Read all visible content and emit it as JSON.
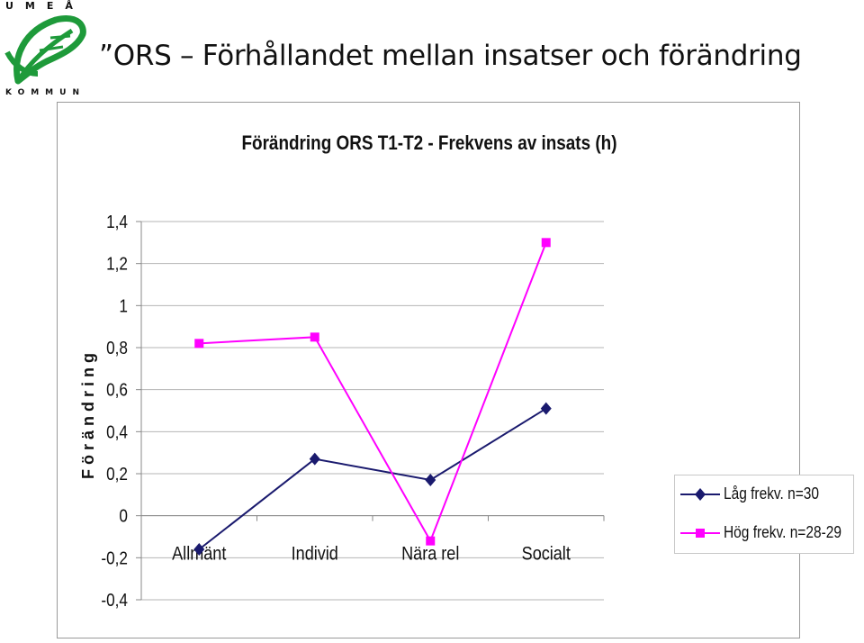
{
  "logo": {
    "top_text": "UMEÅ",
    "bottom_text": "KOMMUN"
  },
  "slide": {
    "title": "”ORS  –  Förhållandet mellan insatser och förändring"
  },
  "colors": {
    "series_low": "#1a1a6e",
    "series_high": "#ff00ff",
    "logo_green": "#1e9a3a"
  },
  "chart_data": {
    "type": "line",
    "title": "Förändring ORS T1-T2 - Frekvens av insats (h)",
    "ylabel": "F ö r ä n d r i n g",
    "xlabel": "",
    "categories": [
      "Allmänt",
      "Individ",
      "Nära rel",
      "Socialt"
    ],
    "ylim": [
      -0.4,
      1.4
    ],
    "yticks": [
      1.4,
      1.2,
      1,
      0.8,
      0.6,
      0.4,
      0.2,
      0,
      -0.2,
      -0.4
    ],
    "ytick_labels": [
      "1,4",
      "1,2",
      "1",
      "0,8",
      "0,6",
      "0,4",
      "0,2",
      "0",
      "-0,2",
      "-0,4"
    ],
    "grid": true,
    "legend_position": "right",
    "series": [
      {
        "name": "Låg frekv. n=30",
        "marker": "diamond",
        "color": "#1a1a6e",
        "values": [
          -0.16,
          0.27,
          0.17,
          0.51
        ]
      },
      {
        "name": "Hög frekv. n=28-29",
        "marker": "square",
        "color": "#ff00ff",
        "values": [
          0.82,
          0.85,
          -0.12,
          1.3
        ]
      }
    ]
  }
}
